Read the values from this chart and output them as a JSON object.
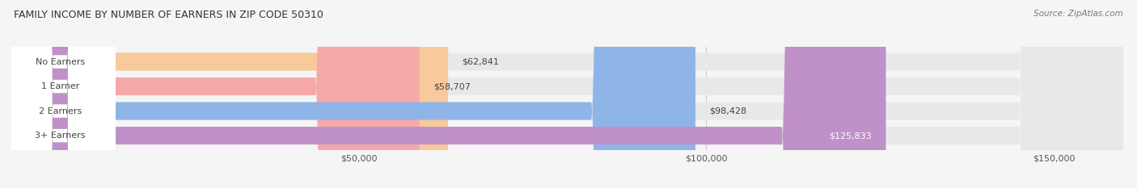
{
  "title": "FAMILY INCOME BY NUMBER OF EARNERS IN ZIP CODE 50310",
  "source": "Source: ZipAtlas.com",
  "categories": [
    "No Earners",
    "1 Earner",
    "2 Earners",
    "3+ Earners"
  ],
  "values": [
    62841,
    58707,
    98428,
    125833
  ],
  "bar_colors": [
    "#f8c99a",
    "#f5a8a8",
    "#8fb4e8",
    "#c090c8"
  ],
  "xlim_min": 0,
  "xlim_max": 160000,
  "xticks": [
    50000,
    100000,
    150000
  ],
  "xtick_labels": [
    "$50,000",
    "$100,000",
    "$150,000"
  ],
  "bg_color": "#f5f5f5",
  "bar_bg_color": "#e8e8e8",
  "grid_color": "#cccccc",
  "title_color": "#333333",
  "source_color": "#777777",
  "label_color": "#444444",
  "value_color_dark": "#444444",
  "value_color_light": "#ffffff"
}
